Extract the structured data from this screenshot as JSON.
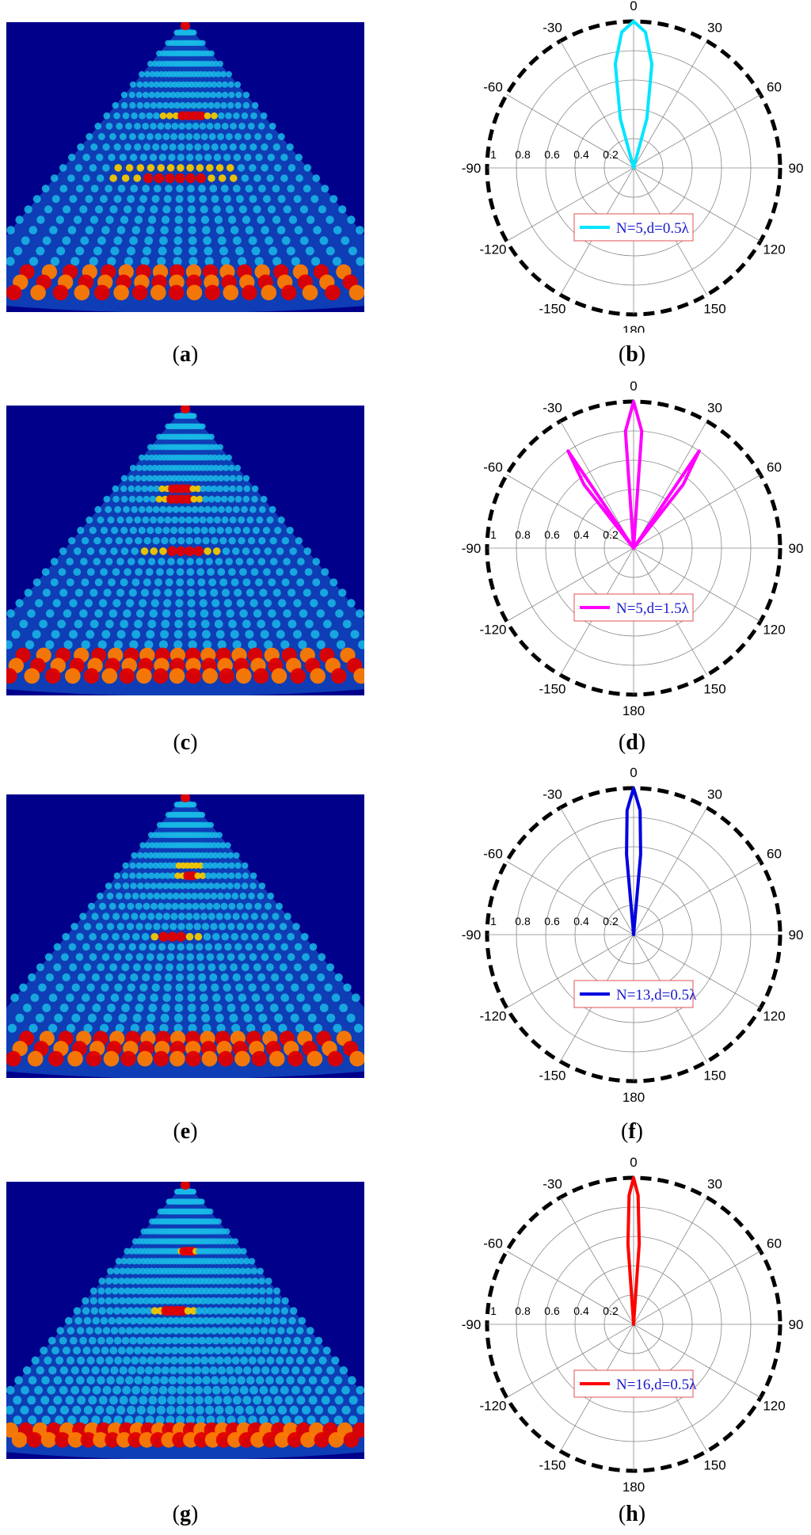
{
  "panels": [
    {
      "id": "a",
      "kind": "heatmap",
      "label": "a"
    },
    {
      "id": "b",
      "kind": "polar",
      "label": "b"
    },
    {
      "id": "c",
      "kind": "heatmap",
      "label": "c"
    },
    {
      "id": "d",
      "kind": "polar",
      "label": "d"
    },
    {
      "id": "e",
      "kind": "heatmap",
      "label": "e"
    },
    {
      "id": "f",
      "kind": "polar",
      "label": "f"
    },
    {
      "id": "g",
      "kind": "heatmap",
      "label": "g"
    },
    {
      "id": "h",
      "kind": "polar",
      "label": "h"
    }
  ],
  "colors": {
    "background": "#00008b",
    "beam_low": "#19b8e6",
    "beam_high": "#e00000",
    "grid": "#888888",
    "outer_ring": "#000000"
  },
  "chart_data": [
    {
      "type": "polar",
      "panel": "b",
      "angle_ticks": [
        "0",
        "30",
        "60",
        "90",
        "120",
        "150",
        "180",
        "-150",
        "-120",
        "-90",
        "-60",
        "-30"
      ],
      "radial_ticks": [
        "0.2",
        "0.4",
        "0.6",
        "0.8",
        "1"
      ],
      "rlim": [
        0,
        1
      ],
      "series": [
        {
          "name": "N=5,d=0.5λ",
          "color": "#00e5ff",
          "theta_deg": [
            -20,
            -15,
            -10,
            -5,
            0,
            5,
            10,
            15,
            20
          ],
          "r": [
            0.0,
            0.35,
            0.72,
            0.93,
            1.0,
            0.93,
            0.72,
            0.35,
            0.0
          ]
        }
      ],
      "legend_position": "bottom-center"
    },
    {
      "type": "polar",
      "panel": "d",
      "angle_ticks": [
        "0",
        "30",
        "60",
        "90",
        "120",
        "150",
        "180",
        "-150",
        "-120",
        "-90",
        "-60",
        "-30"
      ],
      "radial_ticks": [
        "0.2",
        "0.4",
        "0.6",
        "0.8",
        "1"
      ],
      "rlim": [
        0,
        1
      ],
      "series": [
        {
          "name": "N=5,d=1.5λ",
          "color": "#ff00ff",
          "theta_deg": [
            -42,
            -38,
            -34,
            -30,
            -8,
            -4,
            0,
            4,
            8,
            30,
            34,
            38,
            42
          ],
          "r": [
            0.0,
            0.55,
            0.8,
            0.0,
            0.0,
            0.8,
            1.0,
            0.8,
            0.0,
            0.0,
            0.8,
            0.55,
            0.0
          ]
        }
      ],
      "legend_position": "bottom-center"
    },
    {
      "type": "polar",
      "panel": "f",
      "angle_ticks": [
        "0",
        "30",
        "60",
        "90",
        "120",
        "150",
        "180",
        "-150",
        "-120",
        "-90",
        "-60",
        "-30"
      ],
      "radial_ticks": [
        "0.2",
        "0.4",
        "0.6",
        "0.8",
        "1"
      ],
      "rlim": [
        0,
        1
      ],
      "series": [
        {
          "name": "N=13,d=0.5λ",
          "color": "#0000e0",
          "theta_deg": [
            -8,
            -5,
            -3,
            0,
            3,
            5,
            8
          ],
          "r": [
            0.0,
            0.55,
            0.85,
            1.0,
            0.85,
            0.55,
            0.0
          ]
        }
      ],
      "legend_position": "bottom-center"
    },
    {
      "type": "polar",
      "panel": "h",
      "angle_ticks": [
        "0",
        "30",
        "60",
        "90",
        "120",
        "150",
        "180",
        "-150",
        "-120",
        "-90",
        "-60",
        "-30"
      ],
      "radial_ticks": [
        "0.2",
        "0.4",
        "0.6",
        "0.8",
        "1"
      ],
      "rlim": [
        0,
        1
      ],
      "series": [
        {
          "name": "N=16,d=0.5λ",
          "color": "#ff0000",
          "theta_deg": [
            -6,
            -4,
            -2,
            0,
            2,
            4,
            6
          ],
          "r": [
            0.0,
            0.55,
            0.88,
            1.0,
            0.88,
            0.55,
            0.0
          ]
        }
      ],
      "legend_position": "bottom-center"
    }
  ]
}
